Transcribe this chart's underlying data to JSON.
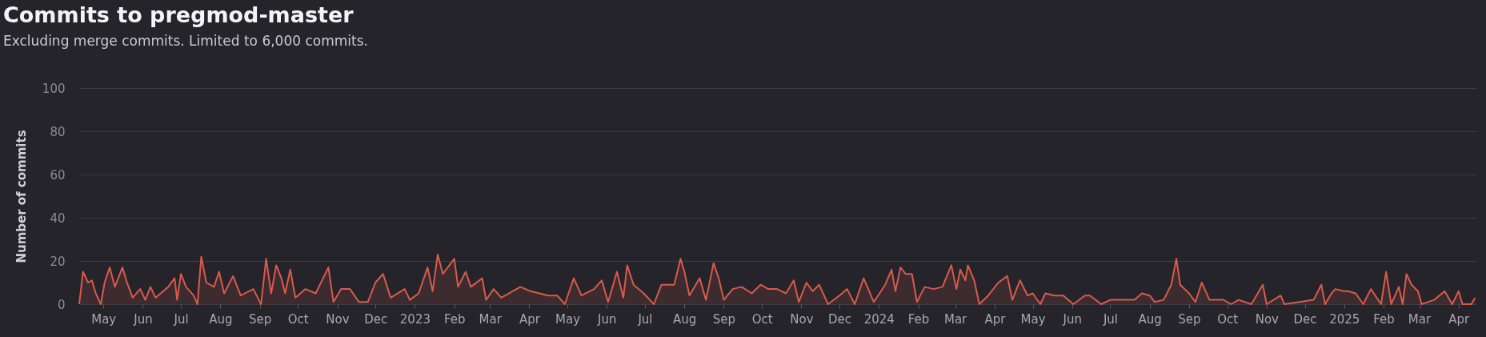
{
  "chart_data": {
    "type": "area",
    "title": "Commits to pregmod-master",
    "subtitle": "Excluding merge commits. Limited to 6,000 commits.",
    "ylabel": "Number of commits",
    "xlim": [
      "2022-04-12",
      "2025-04-15"
    ],
    "ylim": [
      0,
      100
    ],
    "yticks": [
      0,
      20,
      40,
      60,
      80,
      100
    ],
    "xticks": [
      {
        "value": "2022-05-01",
        "label": "May"
      },
      {
        "value": "2022-06-01",
        "label": "Jun"
      },
      {
        "value": "2022-07-01",
        "label": "Jul"
      },
      {
        "value": "2022-08-01",
        "label": "Aug"
      },
      {
        "value": "2022-09-01",
        "label": "Sep"
      },
      {
        "value": "2022-10-01",
        "label": "Oct"
      },
      {
        "value": "2022-11-01",
        "label": "Nov"
      },
      {
        "value": "2022-12-01",
        "label": "Dec"
      },
      {
        "value": "2023-01-01",
        "label": "2023"
      },
      {
        "value": "2023-02-01",
        "label": "Feb"
      },
      {
        "value": "2023-03-01",
        "label": "Mar"
      },
      {
        "value": "2023-04-01",
        "label": "Apr"
      },
      {
        "value": "2023-05-01",
        "label": "May"
      },
      {
        "value": "2023-06-01",
        "label": "Jun"
      },
      {
        "value": "2023-07-01",
        "label": "Jul"
      },
      {
        "value": "2023-08-01",
        "label": "Aug"
      },
      {
        "value": "2023-09-01",
        "label": "Sep"
      },
      {
        "value": "2023-10-01",
        "label": "Oct"
      },
      {
        "value": "2023-11-01",
        "label": "Nov"
      },
      {
        "value": "2023-12-01",
        "label": "Dec"
      },
      {
        "value": "2024-01-01",
        "label": "2024"
      },
      {
        "value": "2024-02-01",
        "label": "Feb"
      },
      {
        "value": "2024-03-01",
        "label": "Mar"
      },
      {
        "value": "2024-04-01",
        "label": "Apr"
      },
      {
        "value": "2024-05-01",
        "label": "May"
      },
      {
        "value": "2024-06-01",
        "label": "Jun"
      },
      {
        "value": "2024-07-01",
        "label": "Jul"
      },
      {
        "value": "2024-08-01",
        "label": "Aug"
      },
      {
        "value": "2024-09-01",
        "label": "Sep"
      },
      {
        "value": "2024-10-01",
        "label": "Oct"
      },
      {
        "value": "2024-11-01",
        "label": "Nov"
      },
      {
        "value": "2024-12-01",
        "label": "Dec"
      },
      {
        "value": "2025-01-01",
        "label": "2025"
      },
      {
        "value": "2025-02-01",
        "label": "Feb"
      },
      {
        "value": "2025-03-01",
        "label": "Mar"
      },
      {
        "value": "2025-04-01",
        "label": "Apr"
      }
    ],
    "grid": "y",
    "x": [
      "2022-04-12",
      "2022-04-15",
      "2022-04-19",
      "2022-04-22",
      "2022-04-25",
      "2022-04-29",
      "2022-05-02",
      "2022-05-06",
      "2022-05-10",
      "2022-05-16",
      "2022-05-19",
      "2022-05-24",
      "2022-05-30",
      "2022-06-03",
      "2022-06-07",
      "2022-06-11",
      "2022-06-21",
      "2022-06-26",
      "2022-06-28",
      "2022-07-01",
      "2022-07-05",
      "2022-07-11",
      "2022-07-14",
      "2022-07-17",
      "2022-07-21",
      "2022-07-27",
      "2022-07-31",
      "2022-08-04",
      "2022-08-11",
      "2022-08-17",
      "2022-08-27",
      "2022-09-02",
      "2022-09-06",
      "2022-09-10",
      "2022-09-14",
      "2022-09-18",
      "2022-09-21",
      "2022-09-25",
      "2022-09-29",
      "2022-10-07",
      "2022-10-15",
      "2022-10-25",
      "2022-10-29",
      "2022-11-04",
      "2022-11-11",
      "2022-11-18",
      "2022-11-25",
      "2022-12-01",
      "2022-12-07",
      "2022-12-13",
      "2022-12-24",
      "2022-12-28",
      "2023-01-04",
      "2023-01-11",
      "2023-01-15",
      "2023-01-19",
      "2023-01-23",
      "2023-02-01",
      "2023-02-04",
      "2023-02-10",
      "2023-02-14",
      "2023-02-23",
      "2023-02-26",
      "2023-03-04",
      "2023-03-10",
      "2023-03-25",
      "2023-04-02",
      "2023-04-09",
      "2023-04-16",
      "2023-04-23",
      "2023-04-29",
      "2023-05-06",
      "2023-05-12",
      "2023-05-22",
      "2023-05-28",
      "2023-06-02",
      "2023-06-09",
      "2023-06-14",
      "2023-06-17",
      "2023-06-22",
      "2023-06-30",
      "2023-07-08",
      "2023-07-14",
      "2023-07-24",
      "2023-07-29",
      "2023-08-01",
      "2023-08-05",
      "2023-08-13",
      "2023-08-18",
      "2023-08-24",
      "2023-08-28",
      "2023-09-01",
      "2023-09-08",
      "2023-09-15",
      "2023-09-23",
      "2023-09-30",
      "2023-10-06",
      "2023-10-13",
      "2023-10-20",
      "2023-10-26",
      "2023-10-30",
      "2023-11-05",
      "2023-11-10",
      "2023-11-15",
      "2023-11-22",
      "2023-12-01",
      "2023-12-07",
      "2023-12-13",
      "2023-12-20",
      "2023-12-28",
      "2024-01-06",
      "2024-01-11",
      "2024-01-14",
      "2024-01-18",
      "2024-01-22",
      "2024-01-27",
      "2024-01-31",
      "2024-02-06",
      "2024-02-13",
      "2024-02-20",
      "2024-02-27",
      "2024-03-02",
      "2024-03-05",
      "2024-03-09",
      "2024-03-11",
      "2024-03-16",
      "2024-03-20",
      "2024-03-27",
      "2024-04-04",
      "2024-04-11",
      "2024-04-15",
      "2024-04-21",
      "2024-04-27",
      "2024-05-01",
      "2024-05-07",
      "2024-05-11",
      "2024-05-18",
      "2024-05-25",
      "2024-06-02",
      "2024-06-11",
      "2024-06-15",
      "2024-06-24",
      "2024-07-01",
      "2024-07-11",
      "2024-07-20",
      "2024-07-26",
      "2024-08-01",
      "2024-08-05",
      "2024-08-12",
      "2024-08-18",
      "2024-08-22",
      "2024-08-25",
      "2024-09-01",
      "2024-09-06",
      "2024-09-11",
      "2024-09-17",
      "2024-09-28",
      "2024-10-04",
      "2024-10-10",
      "2024-10-20",
      "2024-10-29",
      "2024-11-01",
      "2024-11-12",
      "2024-11-15",
      "2024-11-27",
      "2024-12-08",
      "2024-12-14",
      "2024-12-17",
      "2024-12-22",
      "2024-12-25",
      "2025-01-01",
      "2025-01-04",
      "2025-01-10",
      "2025-01-16",
      "2025-01-22",
      "2025-01-30",
      "2025-02-03",
      "2025-02-07",
      "2025-02-13",
      "2025-02-16",
      "2025-02-19",
      "2025-02-23",
      "2025-02-28",
      "2025-03-03",
      "2025-03-13",
      "2025-03-21",
      "2025-03-27",
      "2025-04-01",
      "2025-04-04",
      "2025-04-11",
      "2025-04-14"
    ],
    "series": [
      {
        "color": "#da5a4b",
        "values": [
          0,
          15,
          10,
          11,
          5,
          0,
          10,
          17,
          8,
          17,
          11,
          3,
          7,
          2,
          8,
          3,
          8,
          12,
          2,
          14,
          8,
          4,
          0,
          22,
          10,
          8,
          15,
          5,
          13,
          4,
          7,
          0,
          21,
          5,
          18,
          12,
          5,
          16,
          3,
          7,
          5,
          17,
          1,
          7,
          7,
          1,
          1,
          10,
          14,
          3,
          7,
          2,
          5,
          17,
          6,
          23,
          14,
          21,
          8,
          15,
          8,
          12,
          2,
          7,
          3,
          8,
          6,
          5,
          4,
          4,
          0,
          12,
          4,
          7,
          11,
          1,
          15,
          3,
          18,
          9,
          5,
          0,
          9,
          9,
          21,
          15,
          4,
          12,
          2,
          19,
          12,
          2,
          7,
          8,
          5,
          9,
          7,
          7,
          5,
          11,
          1,
          10,
          6,
          9,
          0,
          4,
          7,
          0,
          12,
          1,
          9,
          16,
          6,
          17,
          14,
          14,
          1,
          8,
          7,
          8,
          18,
          7,
          16,
          11,
          18,
          11,
          0,
          4,
          10,
          13,
          2,
          11,
          4,
          5,
          0,
          5,
          4,
          4,
          0,
          4,
          4,
          0,
          2,
          2,
          2,
          5,
          4,
          1,
          2,
          9,
          21,
          9,
          5,
          1,
          10,
          2,
          2,
          0,
          2,
          0,
          9,
          0,
          4,
          0,
          1,
          2,
          9,
          0,
          5,
          7,
          6,
          6,
          5,
          0,
          7,
          0,
          15,
          0,
          8,
          0,
          14,
          9,
          6,
          0,
          2,
          6,
          0,
          6,
          0,
          0,
          3
        ]
      }
    ]
  }
}
